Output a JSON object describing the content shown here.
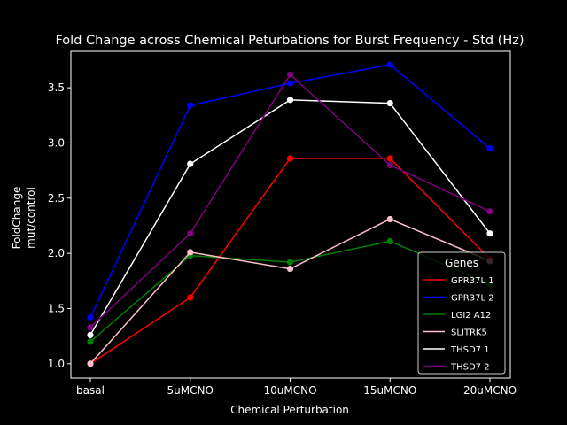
{
  "chart_data": {
    "type": "line",
    "title": "Fold Change across Chemical Peturbations for Burst Frequency - Std (Hz)",
    "xlabel": "Chemical Perturbation",
    "ylabel_lines": [
      "FoldChange",
      "mut/control"
    ],
    "categories": [
      "basal",
      "5uMCNO",
      "10uMCNO",
      "15uMCNO",
      "20uMCNO"
    ],
    "ylim": [
      0.87,
      3.83
    ],
    "yticks": [
      "1.0",
      "1.5",
      "2.0",
      "2.5",
      "3.0",
      "3.5"
    ],
    "grid": false,
    "background": "#000000",
    "legend": {
      "title": "Genes",
      "placement": "lower-right"
    },
    "series": [
      {
        "name": "GPR37L 1",
        "color": "#ff0000",
        "values": [
          1.0,
          1.6,
          2.86,
          2.86,
          1.95
        ]
      },
      {
        "name": "GPR37L 2",
        "color": "#0000ff",
        "values": [
          1.42,
          3.34,
          3.54,
          3.71,
          2.95
        ]
      },
      {
        "name": "LGI2 A12",
        "color": "#008000",
        "values": [
          1.2,
          1.98,
          1.92,
          2.11,
          1.72
        ]
      },
      {
        "name": "SLITRK5",
        "color": "#ffc0cb",
        "values": [
          1.0,
          2.01,
          1.86,
          2.31,
          1.93
        ]
      },
      {
        "name": "THSD7 1",
        "color": "#ffffff",
        "values": [
          1.26,
          2.81,
          3.39,
          3.36,
          2.18
        ]
      },
      {
        "name": "THSD7 2",
        "color": "#800080",
        "values": [
          1.33,
          2.18,
          3.62,
          2.8,
          2.38
        ]
      }
    ]
  }
}
